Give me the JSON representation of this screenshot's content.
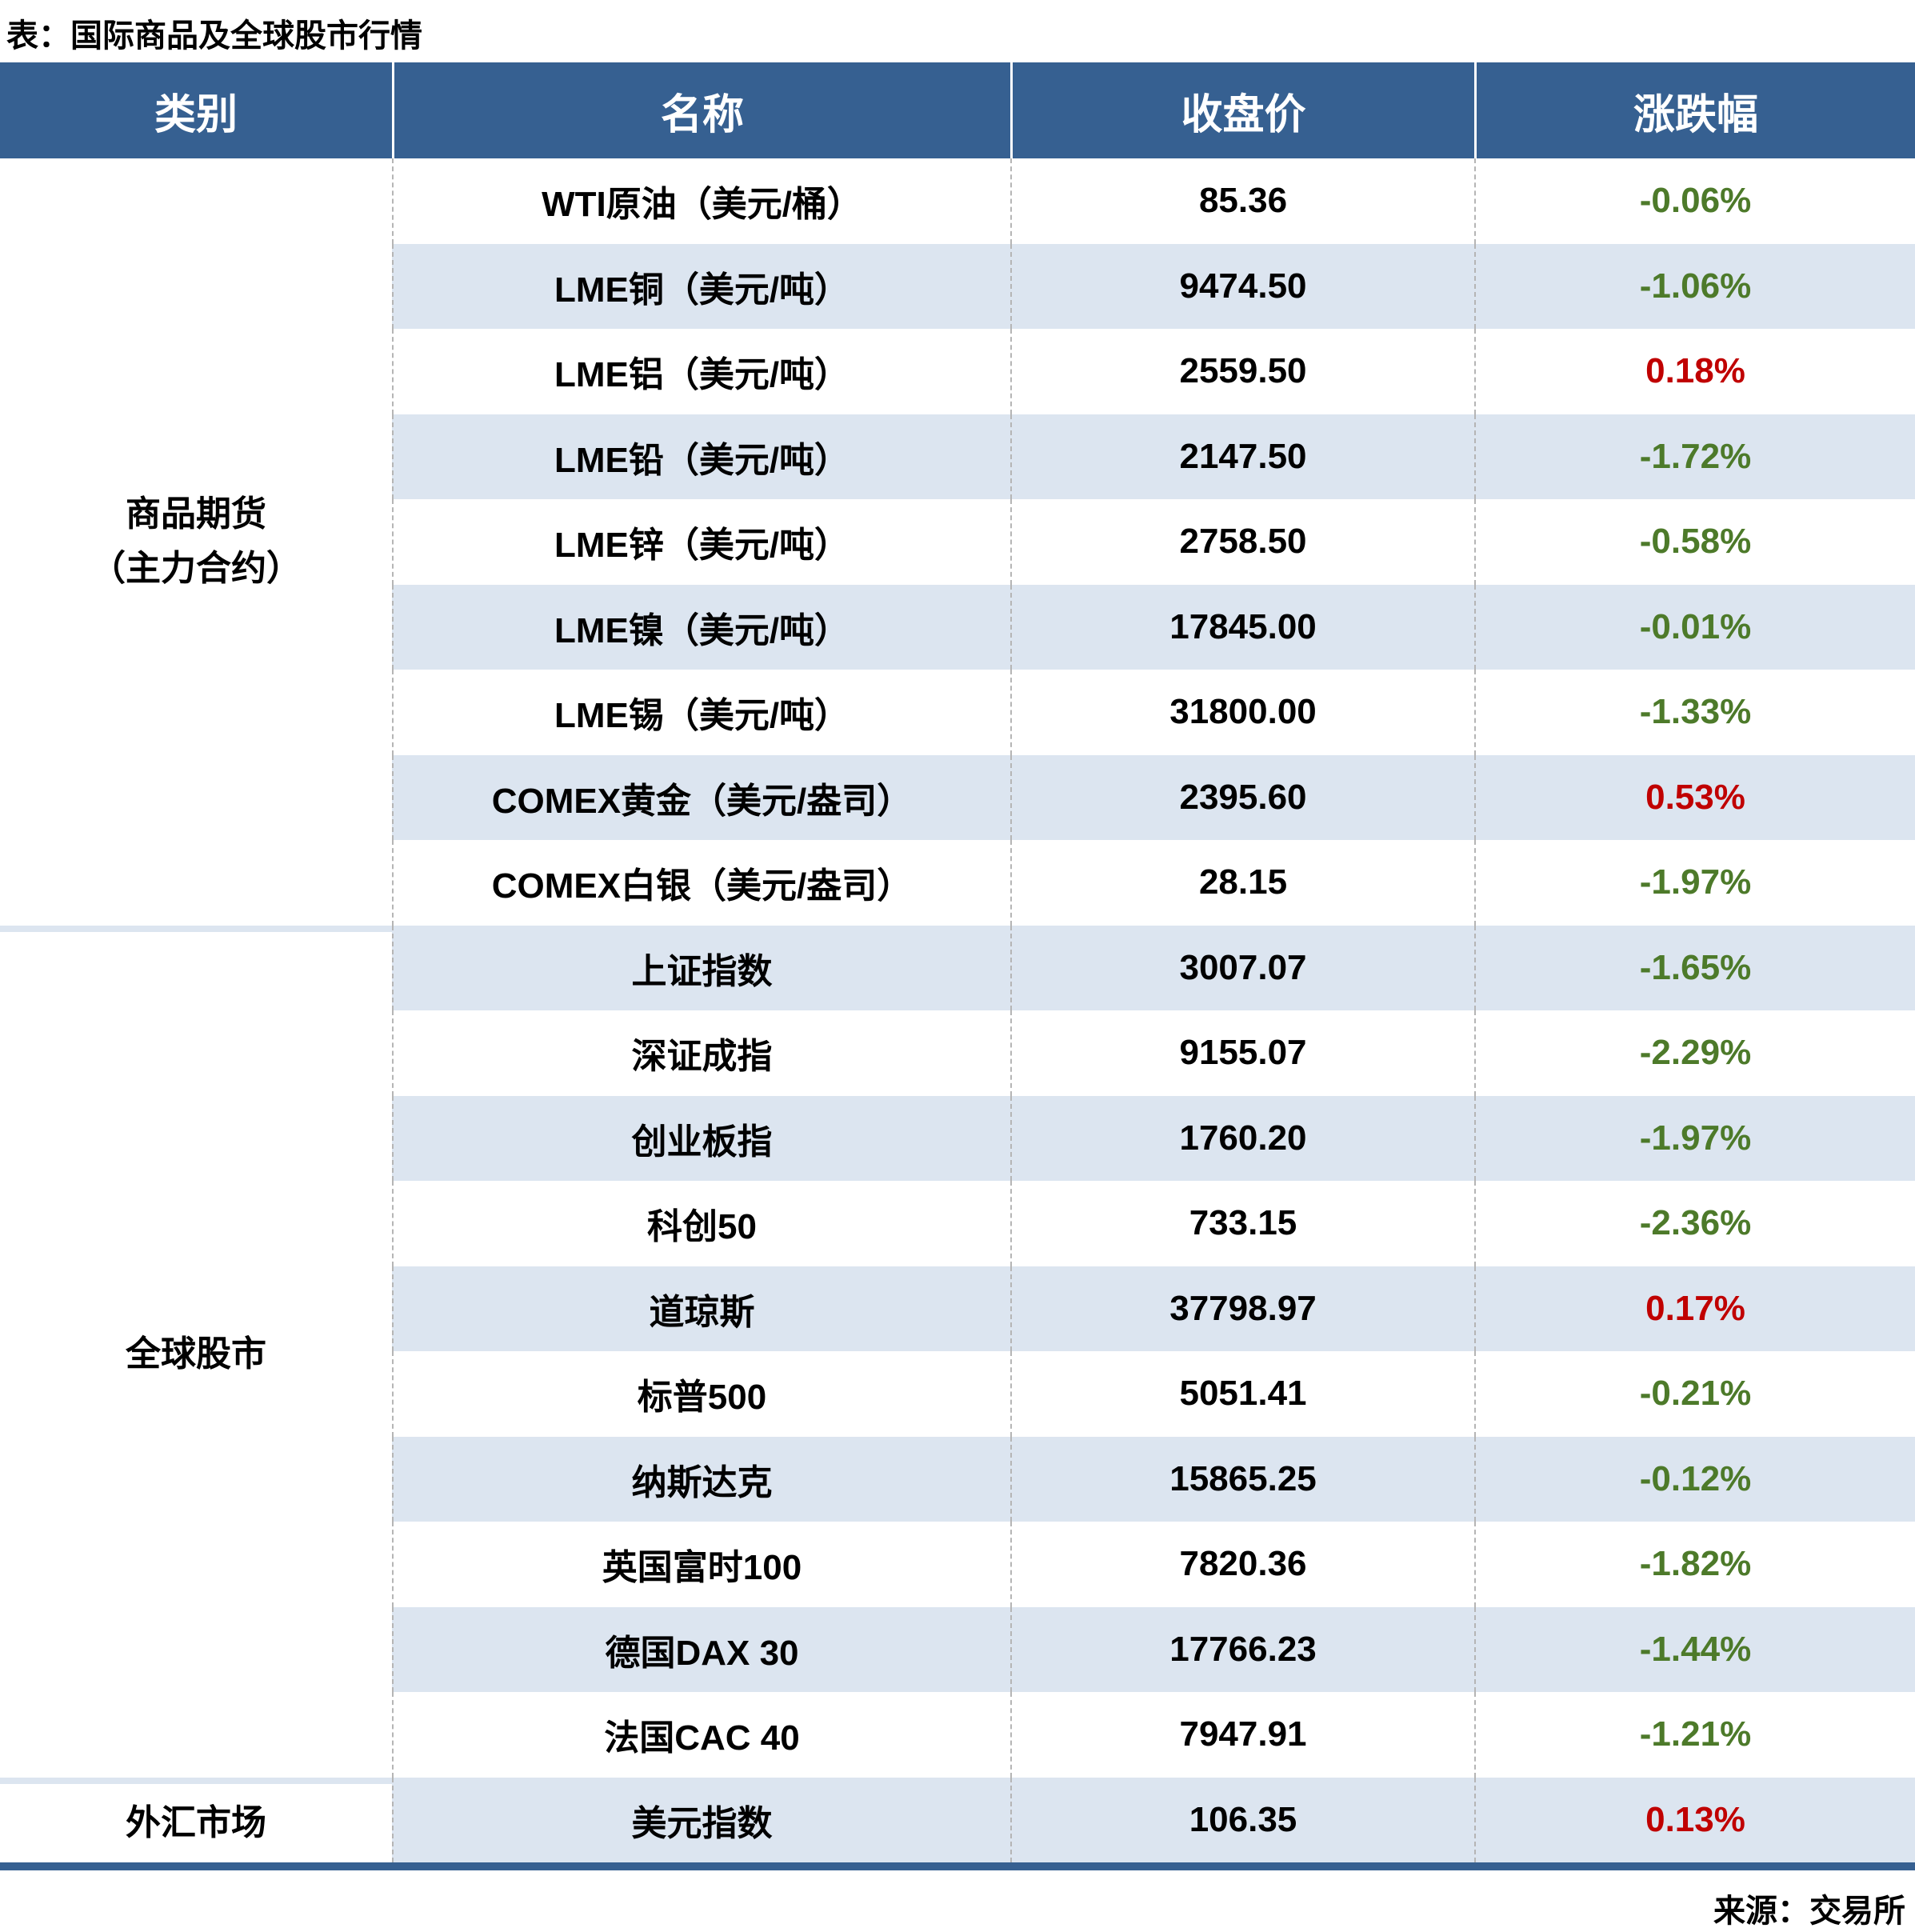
{
  "title": "表：国际商品及全球股市行情",
  "source": "来源：交易所",
  "colors": {
    "header_bg": "#366091",
    "row_alt": "#DCE5F0",
    "up_red": "#C00000",
    "down_green": "#4D7A2A"
  },
  "columns": [
    "类别",
    "名称",
    "收盘价",
    "涨跌幅"
  ],
  "groups": [
    {
      "label": "商品期货",
      "sublabel": "（主力合约）",
      "rows": [
        {
          "name": "WTI原油（美元/桶）",
          "close": "85.36",
          "change": "-0.06%"
        },
        {
          "name": "LME铜（美元/吨）",
          "close": "9474.50",
          "change": "-1.06%"
        },
        {
          "name": "LME铝（美元/吨）",
          "close": "2559.50",
          "change": "0.18%"
        },
        {
          "name": "LME铅（美元/吨）",
          "close": "2147.50",
          "change": "-1.72%"
        },
        {
          "name": "LME锌（美元/吨）",
          "close": "2758.50",
          "change": "-0.58%"
        },
        {
          "name": "LME镍（美元/吨）",
          "close": "17845.00",
          "change": "-0.01%"
        },
        {
          "name": "LME锡（美元/吨）",
          "close": "31800.00",
          "change": "-1.33%"
        },
        {
          "name": "COMEX黄金（美元/盎司）",
          "close": "2395.60",
          "change": "0.53%"
        },
        {
          "name": "COMEX白银（美元/盎司）",
          "close": "28.15",
          "change": "-1.97%"
        }
      ]
    },
    {
      "label": "全球股市",
      "sublabel": "",
      "rows": [
        {
          "name": "上证指数",
          "close": "3007.07",
          "change": "-1.65%"
        },
        {
          "name": "深证成指",
          "close": "9155.07",
          "change": "-2.29%"
        },
        {
          "name": "创业板指",
          "close": "1760.20",
          "change": "-1.97%"
        },
        {
          "name": "科创50",
          "close": "733.15",
          "change": "-2.36%"
        },
        {
          "name": "道琼斯",
          "close": "37798.97",
          "change": "0.17%"
        },
        {
          "name": "标普500",
          "close": "5051.41",
          "change": "-0.21%"
        },
        {
          "name": "纳斯达克",
          "close": "15865.25",
          "change": "-0.12%"
        },
        {
          "name": "英国富时100",
          "close": "7820.36",
          "change": "-1.82%"
        },
        {
          "name": "德国DAX 30",
          "close": "17766.23",
          "change": "-1.44%"
        },
        {
          "name": "法国CAC 40",
          "close": "7947.91",
          "change": "-1.21%"
        }
      ]
    },
    {
      "label": "外汇市场",
      "sublabel": "",
      "rows": [
        {
          "name": "美元指数",
          "close": "106.35",
          "change": "0.13%"
        }
      ]
    }
  ]
}
